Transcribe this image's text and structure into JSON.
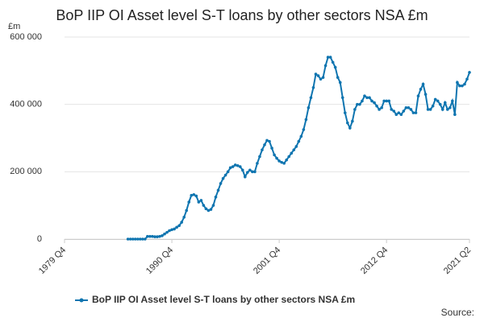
{
  "chart_data": {
    "type": "line",
    "title": "BoP IIP OI Asset level S-T loans by other sectors NSA £m",
    "y_label": "£m",
    "source": "Source:",
    "categories": [
      "1979 Q4",
      null,
      null,
      null,
      null,
      null,
      null,
      null,
      null,
      null,
      null,
      null,
      null,
      null,
      null,
      null,
      null,
      null,
      null,
      null,
      null,
      null,
      null,
      null,
      null,
      null,
      null,
      null,
      null,
      null,
      null,
      null,
      null,
      null,
      null,
      null,
      null,
      null,
      null,
      null,
      null,
      null,
      null,
      null,
      "1990 Q4",
      null,
      null,
      null,
      null,
      null,
      null,
      null,
      null,
      null,
      null,
      null,
      null,
      null,
      null,
      null,
      null,
      null,
      null,
      null,
      null,
      null,
      null,
      null,
      null,
      null,
      null,
      null,
      null,
      null,
      null,
      null,
      null,
      null,
      null,
      null,
      null,
      null,
      null,
      null,
      null,
      null,
      null,
      null,
      "2001 Q4",
      null,
      null,
      null,
      null,
      null,
      null,
      null,
      null,
      null,
      null,
      null,
      null,
      null,
      null,
      null,
      null,
      null,
      null,
      null,
      null,
      null,
      null,
      null,
      null,
      null,
      null,
      null,
      null,
      null,
      null,
      null,
      null,
      null,
      null,
      null,
      null,
      null,
      null,
      null,
      null,
      null,
      null,
      null,
      "2012 Q4",
      null,
      null,
      null,
      null,
      null,
      null,
      null,
      null,
      null,
      null,
      null,
      null,
      null,
      null,
      null,
      null,
      null,
      null,
      null,
      null,
      null,
      null,
      null,
      null,
      null,
      null,
      null,
      null,
      null,
      null,
      null,
      null,
      null,
      "2021 Q2"
    ],
    "series": [
      {
        "name": "BoP IIP OI Asset level S-T loans by other sectors NSA £m",
        "color": "#0f75b0",
        "values": [
          null,
          null,
          null,
          null,
          null,
          null,
          null,
          null,
          null,
          null,
          null,
          null,
          null,
          null,
          null,
          null,
          null,
          null,
          null,
          null,
          null,
          null,
          null,
          null,
          null,
          null,
          0,
          0,
          0,
          0,
          0,
          0,
          0,
          0,
          8000,
          8000,
          8000,
          7000,
          7000,
          8000,
          10000,
          15000,
          20000,
          25000,
          28000,
          30000,
          35000,
          40000,
          50000,
          65000,
          85000,
          110000,
          130000,
          132000,
          128000,
          110000,
          115000,
          100000,
          90000,
          85000,
          88000,
          100000,
          125000,
          145000,
          165000,
          180000,
          190000,
          200000,
          212000,
          215000,
          220000,
          218000,
          215000,
          205000,
          185000,
          198000,
          205000,
          200000,
          200000,
          225000,
          245000,
          265000,
          280000,
          293000,
          290000,
          270000,
          250000,
          240000,
          232000,
          228000,
          225000,
          235000,
          245000,
          255000,
          265000,
          275000,
          290000,
          305000,
          325000,
          355000,
          390000,
          420000,
          450000,
          490000,
          485000,
          475000,
          480000,
          515000,
          540000,
          540000,
          525000,
          510000,
          480000,
          465000,
          420000,
          375000,
          345000,
          330000,
          350000,
          385000,
          400000,
          400000,
          410000,
          425000,
          420000,
          420000,
          410000,
          405000,
          395000,
          385000,
          390000,
          410000,
          410000,
          410000,
          385000,
          380000,
          370000,
          375000,
          370000,
          380000,
          390000,
          390000,
          385000,
          375000,
          375000,
          425000,
          445000,
          460000,
          430000,
          385000,
          385000,
          395000,
          415000,
          410000,
          400000,
          385000,
          405000,
          385000,
          390000,
          410000,
          370000,
          465000,
          455000,
          455000,
          460000,
          475000,
          495000
        ]
      }
    ],
    "ylim": [
      0,
      600000
    ],
    "yticks": [
      0,
      {
        "value": 200000,
        "label": "200 000"
      },
      {
        "value": 400000,
        "label": "400 000"
      },
      {
        "value": 600000,
        "label": "600 000"
      }
    ],
    "grid": true,
    "legend": "bottom"
  }
}
